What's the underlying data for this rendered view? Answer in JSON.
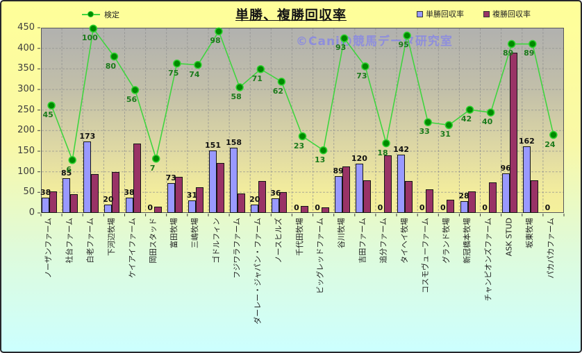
{
  "title": "単勝、複勝回収率",
  "watermark": "©Caniの競馬データ研究室",
  "legend": {
    "line": "検定",
    "series1": "単勝回収率",
    "series2": "複勝回収率"
  },
  "colors": {
    "tansho_bar": "#9999FF",
    "fukusho_bar": "#993366",
    "kentei_line": "#3FD53F",
    "kentei_marker": "#008A00",
    "kentei_marker_ring": "#2FD32F",
    "kentei_label": "#1B7A1B",
    "bar_label": "#111111",
    "watermark_text": "rgba(138,138,225,0.9)",
    "page_bg_top": "#FFFF99",
    "page_bg_bottom": "#CCFFFF",
    "plot_bg_top": "#B1B1AF",
    "plot_bg_bottom": "#F5F09B"
  },
  "y_axis": {
    "ticks": [
      "0",
      "50",
      "100",
      "150",
      "200",
      "250",
      "300",
      "350",
      "400",
      "450"
    ]
  },
  "chart_data": {
    "type": "bar",
    "title": "単勝、複勝回収率",
    "categories": [
      "ノーザンファーム",
      "社台ファーム",
      "白老ファーム",
      "下河辺牧場",
      "ケイアイファーム",
      "岡田スタッド",
      "富田牧場",
      "三嶋牧場",
      "ゴドルフィン",
      "フジワラファーム",
      "ダーレー・ジャパン・ファーム",
      "ノースヒルズ",
      "千代田牧場",
      "ビッグレッドファーム",
      "谷川牧場",
      "吉田ファーム",
      "追分ファーム",
      "タイヘイ牧場",
      "コスモヴューファーム",
      "グランド牧場",
      "新冠橋本牧場",
      "チャンピオンズファーム",
      "ASK STUD",
      "坂東牧場",
      "パカパカファーム"
    ],
    "series": [
      {
        "name": "単勝回収率",
        "type": "bar",
        "color": "#9999FF",
        "data_labels": true,
        "values": [
          38,
          85,
          173,
          20,
          38,
          0,
          73,
          31,
          151,
          158,
          20,
          36,
          0,
          0,
          89,
          120,
          0,
          142,
          0,
          0,
          28,
          0,
          96,
          162,
          0
        ]
      },
      {
        "name": "複勝回収率",
        "type": "bar",
        "color": "#993366",
        "data_labels": false,
        "values": [
          52,
          45,
          95,
          100,
          168,
          15,
          87,
          62,
          122,
          47,
          78,
          50,
          17,
          13,
          113,
          80,
          140,
          78,
          57,
          32,
          53,
          75,
          390,
          80,
          0
        ]
      },
      {
        "name": "検定",
        "type": "line",
        "color": "#3FD53F",
        "data_labels": true,
        "axis": "hidden-secondary",
        "values": [
          45,
          6,
          100,
          80,
          56,
          7,
          75,
          74,
          98,
          58,
          71,
          62,
          23,
          13,
          93,
          73,
          18,
          95,
          33,
          31,
          42,
          40,
          89,
          89,
          24
        ]
      }
    ],
    "ylim": [
      0,
      450
    ],
    "ytick_step": 50,
    "grid": "both-dashed",
    "legend_position": "top",
    "secondary_axis_note": "line series on hidden secondary axis; primary-equivalent position = 108 + 3.4 × value"
  }
}
